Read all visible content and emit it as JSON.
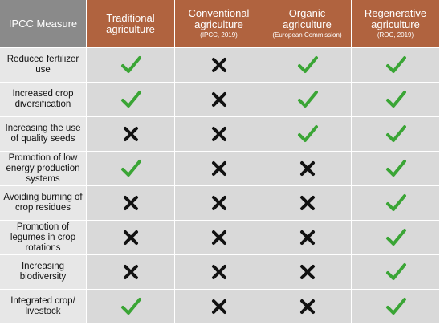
{
  "header": {
    "measure_label": "IPCC Measure",
    "columns": [
      {
        "title_line1": "Traditional",
        "title_line2": "agriculture",
        "source": ""
      },
      {
        "title_line1": "Conventional",
        "title_line2": "agriculture",
        "source": "(IPCC, 2019)"
      },
      {
        "title_line1": "Organic",
        "title_line2": "agriculture",
        "source": "(European Commission)"
      },
      {
        "title_line1": "Regenerative",
        "title_line2": "agriculture",
        "source": "(ROC, 2019)"
      }
    ]
  },
  "rows": [
    {
      "line1": "Reduced fertilizer",
      "line2": "use",
      "line3": "",
      "marks": [
        "check",
        "cross",
        "check",
        "check"
      ]
    },
    {
      "line1": "Increased crop",
      "line2": "diversification",
      "line3": "",
      "marks": [
        "check",
        "cross",
        "check",
        "check"
      ]
    },
    {
      "line1": "Increasing the use",
      "line2": "of quality seeds",
      "line3": "",
      "marks": [
        "cross",
        "cross",
        "check",
        "check"
      ]
    },
    {
      "line1": "Promotion of low",
      "line2": "energy production",
      "line3": "systems",
      "marks": [
        "check",
        "cross",
        "cross",
        "check"
      ]
    },
    {
      "line1": "Avoiding burning of",
      "line2": "crop residues",
      "line3": "",
      "marks": [
        "cross",
        "cross",
        "cross",
        "check"
      ]
    },
    {
      "line1": "Promotion of",
      "line2": "legumes in crop",
      "line3": "rotations",
      "marks": [
        "cross",
        "cross",
        "cross",
        "check"
      ]
    },
    {
      "line1": "Increasing",
      "line2": "biodiversity",
      "line3": "",
      "marks": [
        "cross",
        "cross",
        "cross",
        "check"
      ]
    },
    {
      "line1": "Integrated crop/",
      "line2": "livestock",
      "line3": "",
      "marks": [
        "check",
        "cross",
        "cross",
        "check"
      ]
    }
  ],
  "colors": {
    "header_measure_bg": "#8a8a8a",
    "header_bg": "#b0633f",
    "check": "#3aa535",
    "cross": "#111111",
    "cell_bg": "#d9d9d9",
    "label_bg": "#e7e7e7"
  },
  "icons": {
    "check": "checkmark-icon",
    "cross": "x-mark-icon"
  }
}
